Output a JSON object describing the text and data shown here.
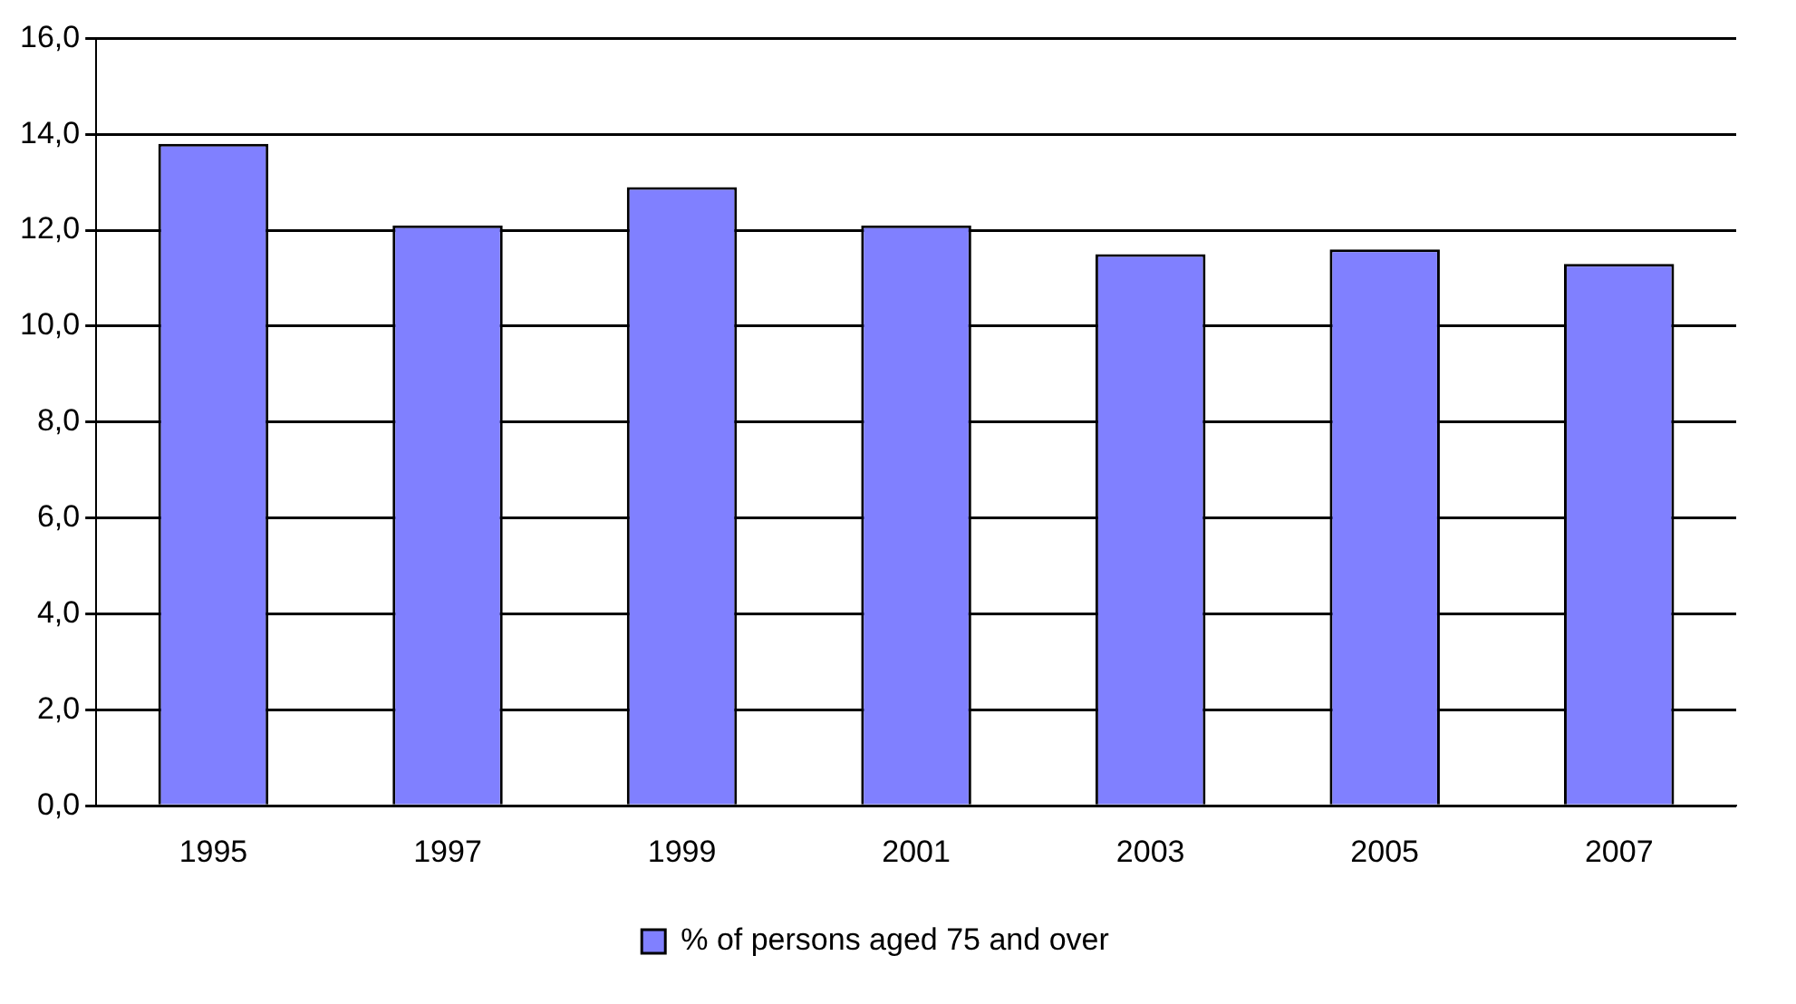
{
  "chart_data": {
    "type": "bar",
    "categories": [
      "1995",
      "1997",
      "1999",
      "2001",
      "2003",
      "2005",
      "2007"
    ],
    "series": [
      {
        "name": "% of persons aged 75 and over",
        "color": "#8080ff",
        "values": [
          13.8,
          12.1,
          12.9,
          12.1,
          11.5,
          11.6,
          11.3
        ]
      }
    ],
    "ylim": [
      0,
      16
    ],
    "yticks": [
      {
        "value": 0,
        "label": "0,0"
      },
      {
        "value": 2,
        "label": "2,0"
      },
      {
        "value": 4,
        "label": "4,0"
      },
      {
        "value": 6,
        "label": "6,0"
      },
      {
        "value": 8,
        "label": "8,0"
      },
      {
        "value": 10,
        "label": "10,0"
      },
      {
        "value": 12,
        "label": "12,0"
      },
      {
        "value": 14,
        "label": "14,0"
      },
      {
        "value": 16,
        "label": "16,0"
      }
    ],
    "grid": "y",
    "legend": "bottom"
  }
}
